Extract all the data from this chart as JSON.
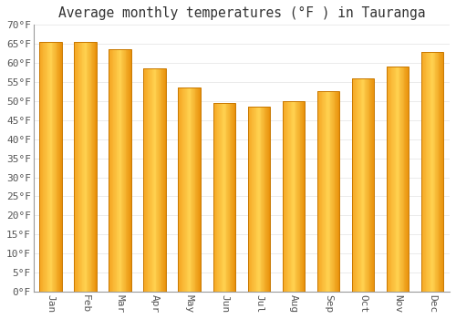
{
  "months": [
    "Jan",
    "Feb",
    "Mar",
    "Apr",
    "May",
    "Jun",
    "Jul",
    "Aug",
    "Sep",
    "Oct",
    "Nov",
    "Dec"
  ],
  "values": [
    65.5,
    65.5,
    63.5,
    58.5,
    53.5,
    49.5,
    48.5,
    50.0,
    52.5,
    56.0,
    59.0,
    63.0
  ],
  "bar_color_left": "#F5A623",
  "bar_color_center": "#FFD150",
  "bar_color_right": "#E8900A",
  "bar_edge_color": "#C87800",
  "title": "Average monthly temperatures (°F ) in Tauranga",
  "ylim": [
    0,
    70
  ],
  "ytick_step": 5,
  "background_color": "#ffffff",
  "grid_color": "#e8e8e8",
  "title_fontsize": 10.5,
  "tick_fontsize": 8,
  "font_family": "monospace",
  "bar_width": 0.65,
  "figsize": [
    5.0,
    3.5
  ],
  "dpi": 100
}
